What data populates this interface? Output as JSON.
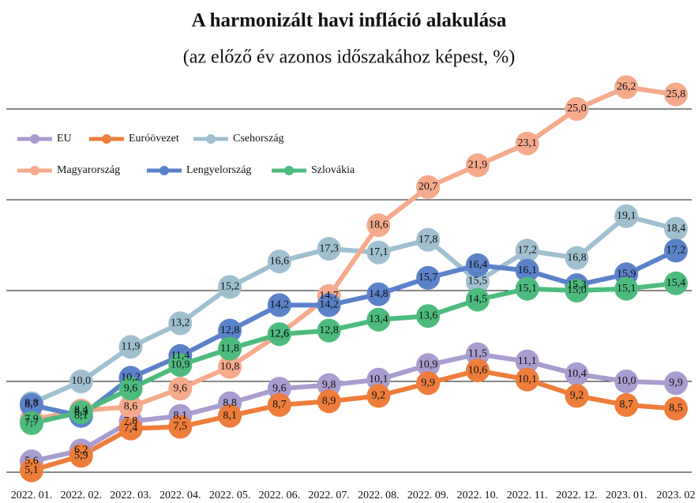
{
  "chart_data": {
    "type": "line",
    "title": "A harmonizált havi infláció alakulása",
    "subtitle": "(az előző év azonos időszakához képest, %)",
    "categories": [
      "2022. 01.",
      "2022. 02.",
      "2022. 03.",
      "2022. 04.",
      "2022. 05.",
      "2022. 06.",
      "2022. 07.",
      "2022. 08.",
      "2022. 09.",
      "2022. 10.",
      "2022. 11.",
      "2022. 12.",
      "2023. 01.",
      "2023. 02"
    ],
    "ylim": [
      5,
      27
    ],
    "yticks": [
      5,
      10,
      15,
      20,
      25
    ],
    "ytick_labels": false,
    "grid": true,
    "legend": "top-left",
    "series": [
      {
        "name": "EU",
        "color": "#a99ccf",
        "values": [
          5.6,
          6.2,
          7.8,
          8.1,
          8.8,
          9.6,
          9.8,
          10.1,
          10.9,
          11.5,
          11.1,
          10.4,
          10.0,
          9.9
        ],
        "value_labels": [
          "5,6",
          "6,2",
          "7,8",
          "8,1",
          "8,8",
          "9,6",
          "9,8",
          "10,1",
          "10,9",
          "11,5",
          "11,1",
          "10,4",
          "10,0",
          "9,9"
        ]
      },
      {
        "name": "Euróövezet",
        "color": "#ee7d3b",
        "values": [
          5.1,
          5.9,
          7.4,
          7.5,
          8.1,
          8.7,
          8.9,
          9.2,
          9.9,
          10.6,
          10.1,
          9.2,
          8.7,
          8.5
        ],
        "value_labels": [
          "5,1",
          "5,9",
          "7,4",
          "7,5",
          "8,1",
          "8,7",
          "8,9",
          "9,2",
          "9,9",
          "10,6",
          "10,1",
          "9,2",
          "8,7",
          "8,5"
        ]
      },
      {
        "name": "Csehország",
        "color": "#a0c0d0",
        "values": [
          8.8,
          10.0,
          11.9,
          13.2,
          15.2,
          16.6,
          17.3,
          17.1,
          17.8,
          15.5,
          17.2,
          16.8,
          19.1,
          18.4
        ],
        "value_labels": [
          "8,8",
          "10,0",
          "11,9",
          "13,2",
          "15,2",
          "16,6",
          "17,3",
          "17,1",
          "17,8",
          "15,5",
          "17,2",
          "16,8",
          "19,1",
          "18,4"
        ]
      },
      {
        "name": "Magyarország",
        "color": "#f5aa8c",
        "values": [
          7.9,
          8.4,
          8.6,
          9.6,
          10.8,
          12.6,
          14.7,
          18.6,
          20.7,
          21.9,
          23.1,
          25.0,
          26.2,
          25.8
        ],
        "value_labels": [
          "7,9",
          "8,4",
          "8,6",
          "9,6",
          "10,8",
          "12,6",
          "14,7",
          "18,6",
          "20,7",
          "21,9",
          "23,1",
          "25,0",
          "26,2",
          "25,8"
        ]
      },
      {
        "name": "Lengyelország",
        "color": "#5b82c9",
        "values": [
          8.7,
          8.1,
          10.2,
          11.4,
          12.8,
          14.2,
          14.2,
          14.8,
          15.7,
          16.4,
          16.1,
          15.3,
          15.9,
          17.2
        ],
        "value_labels": [
          "8,7",
          "8,1",
          "10,2",
          "11,4",
          "12,8",
          "14,2",
          "14,2",
          "14,8",
          "15,7",
          "16,4",
          "16,1",
          "15,3",
          "15,9",
          "17,2"
        ]
      },
      {
        "name": "Szlovákia",
        "color": "#4dbb7d",
        "values": [
          7.7,
          8.3,
          9.6,
          10.9,
          11.8,
          12.6,
          12.8,
          13.4,
          13.6,
          14.5,
          15.1,
          15.0,
          15.1,
          15.4
        ],
        "value_labels": [
          "7,7",
          "8,3",
          "9,6",
          "10,9",
          "11,8",
          "12,6",
          "12,8",
          "13,4",
          "13,6",
          "14,5",
          "15,1",
          "15,0",
          "15,1",
          "15,4"
        ]
      }
    ]
  }
}
